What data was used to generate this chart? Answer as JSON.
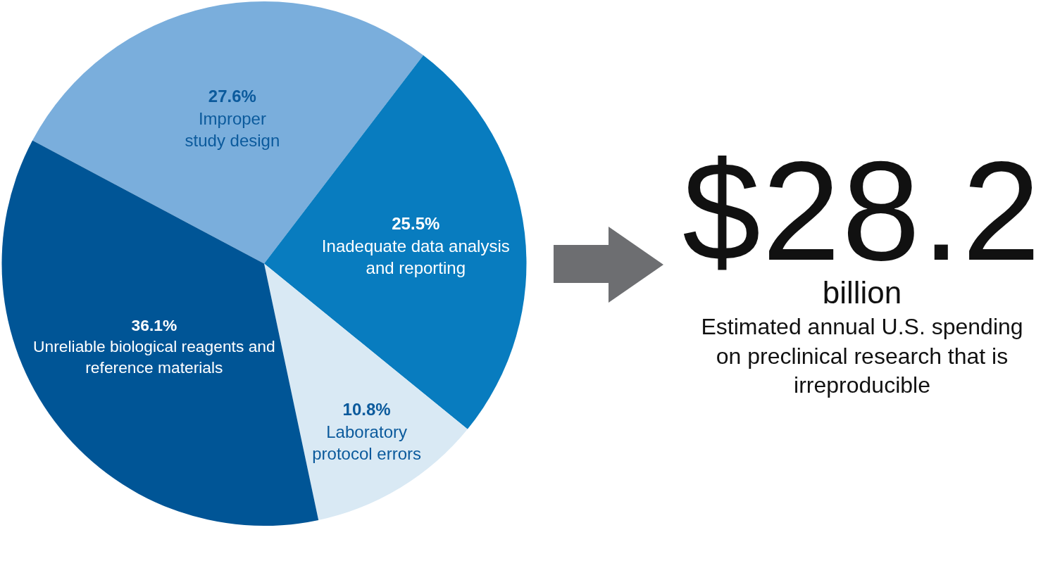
{
  "chart_data": [
    {
      "type": "pie",
      "categories": [
        "Improper study design",
        "Inadequate data analysis and reporting",
        "Laboratory protocol errors",
        "Unreliable biological reagents and reference materials"
      ],
      "values": [
        27.6,
        25.5,
        10.8,
        36.1
      ],
      "value_labels": [
        "27.6%",
        "25.5%",
        "10.8%",
        "36.1%"
      ],
      "colors": [
        "#7aaedc",
        "#087cbf",
        "#d9e9f4",
        "#005596"
      ]
    },
    {
      "type": "other",
      "title": "$28.2",
      "subtitle": "billion",
      "annotations": [
        "Estimated annual U.S. spending on preclinical research that is irreproducible"
      ]
    }
  ]
}
